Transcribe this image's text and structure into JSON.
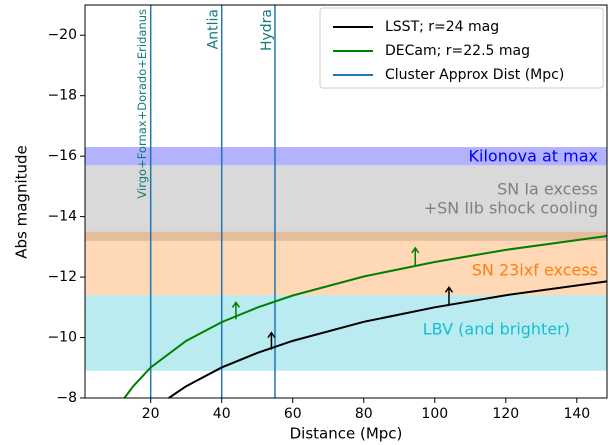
{
  "chart_data": {
    "type": "line",
    "xlabel": "Distance (Mpc)",
    "ylabel": "Abs magnitude",
    "xlim": [
      1.5,
      148.5
    ],
    "ylim": [
      -8,
      -21
    ],
    "xticks": [
      20,
      40,
      60,
      80,
      100,
      120,
      140
    ],
    "yticks": [
      {
        "value": -20,
        "label": "−20"
      },
      {
        "value": -18,
        "label": "−18"
      },
      {
        "value": -16,
        "label": "−16"
      },
      {
        "value": -14,
        "label": "−14"
      },
      {
        "value": -12,
        "label": "−12"
      },
      {
        "value": -10,
        "label": "−10"
      },
      {
        "value": -8,
        "label": "−8"
      }
    ],
    "series": [
      {
        "name": "LSST; r=24 mag",
        "color": "#000000",
        "x": [
          25.1,
          30,
          40,
          50,
          60,
          80,
          100,
          120,
          148.5
        ],
        "values": [
          -8.0,
          -8.39,
          -9.01,
          -9.49,
          -9.89,
          -10.52,
          -11.0,
          -11.4,
          -11.86
        ]
      },
      {
        "name": "DECam; r=22.5 mag",
        "color": "#008000",
        "x": [
          12.6,
          15,
          20,
          30,
          40,
          50,
          60,
          80,
          100,
          120,
          148.5
        ],
        "values": [
          -8.0,
          -8.38,
          -9.01,
          -9.89,
          -10.51,
          -10.99,
          -11.39,
          -12.02,
          -12.5,
          -12.9,
          -13.36
        ]
      }
    ],
    "vlines": {
      "name": "Cluster Approx Dist (Mpc)",
      "color": "#1f77b4",
      "x": [
        20,
        40,
        55
      ],
      "labels": [
        "Virgo+Fornax+Dorado+Eridanus",
        "Antlia",
        "Hydra"
      ],
      "label_color": "#117a7a"
    },
    "bands": [
      {
        "label": "Kilonova at max",
        "range": [
          -16.3,
          -15.7
        ],
        "color": "#0000ff",
        "text_color": "#0000ff"
      },
      {
        "label": "SN Ia excess",
        "label2": "+SN IIb shock cooling",
        "range": [
          -15.7,
          -13.2
        ],
        "color": "#808080",
        "text_color": "#808080"
      },
      {
        "label": "SN 23ixf excess",
        "range": [
          -13.5,
          -11.4
        ],
        "color": "#ff7f0e",
        "text_color": "#ff7f0e"
      },
      {
        "label": "LBV (and brighter)",
        "range": [
          -11.4,
          -8.9
        ],
        "color": "#17becf",
        "text_color": "#17becf"
      }
    ],
    "arrows": [
      {
        "x": 44,
        "y": -10.6,
        "color": "#008000"
      },
      {
        "x": 94.5,
        "y": -12.4,
        "color": "#008000"
      },
      {
        "x": 54,
        "y": -9.6,
        "color": "#000000"
      },
      {
        "x": 104,
        "y": -11.1,
        "color": "#000000"
      }
    ]
  }
}
